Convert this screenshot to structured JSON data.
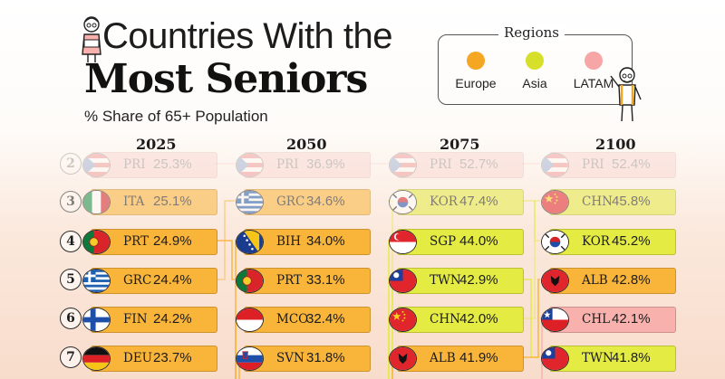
{
  "title": {
    "line1": "Countries With the",
    "line2": "Most Seniors",
    "subtitle": "% Share of 65+ Population"
  },
  "legend": {
    "title": "Regions",
    "items": [
      {
        "label": "Europe",
        "color": "#f5a623"
      },
      {
        "label": "Asia",
        "color": "#d6e02a"
      },
      {
        "label": "LATAM",
        "color": "#f7a6a6"
      }
    ]
  },
  "colors": {
    "Europe": "#f9b43a",
    "Asia": "#e4eb43",
    "LATAM": "#f8b1ad"
  },
  "ranks": [
    "2",
    "3",
    "4",
    "5",
    "6",
    "7"
  ],
  "chart_data": {
    "type": "table",
    "title": "Countries With the Most Seniors",
    "subtitle": "% Share of 65+ Population",
    "unit": "%",
    "columns": [
      {
        "year": "2025",
        "rows": [
          {
            "rank": 2,
            "code": "PRI",
            "value": 25.3,
            "label": "25.3%",
            "region": "LATAM"
          },
          {
            "rank": 3,
            "code": "ITA",
            "value": 25.1,
            "label": "25.1%",
            "region": "Europe"
          },
          {
            "rank": 4,
            "code": "PRT",
            "value": 24.9,
            "label": "24.9%",
            "region": "Europe"
          },
          {
            "rank": 5,
            "code": "GRC",
            "value": 24.4,
            "label": "24.4%",
            "region": "Europe"
          },
          {
            "rank": 6,
            "code": "FIN",
            "value": 24.2,
            "label": "24.2%",
            "region": "Europe"
          },
          {
            "rank": 7,
            "code": "DEU",
            "value": 23.7,
            "label": "23.7%",
            "region": "Europe"
          }
        ]
      },
      {
        "year": "2050",
        "rows": [
          {
            "rank": 2,
            "code": "PRI",
            "value": 36.9,
            "label": "36.9%",
            "region": "LATAM"
          },
          {
            "rank": 3,
            "code": "GRC",
            "value": 34.6,
            "label": "34.6%",
            "region": "Europe"
          },
          {
            "rank": 4,
            "code": "BIH",
            "value": 34.0,
            "label": "34.0%",
            "region": "Europe"
          },
          {
            "rank": 5,
            "code": "PRT",
            "value": 33.1,
            "label": "33.1%",
            "region": "Europe"
          },
          {
            "rank": 6,
            "code": "MCO",
            "value": 32.4,
            "label": "32.4%",
            "region": "Europe"
          },
          {
            "rank": 7,
            "code": "SVN",
            "value": 31.8,
            "label": "31.8%",
            "region": "Europe"
          }
        ]
      },
      {
        "year": "2075",
        "rows": [
          {
            "rank": 2,
            "code": "PRI",
            "value": 52.7,
            "label": "52.7%",
            "region": "LATAM"
          },
          {
            "rank": 3,
            "code": "KOR",
            "value": 47.4,
            "label": "47.4%",
            "region": "Asia"
          },
          {
            "rank": 4,
            "code": "SGP",
            "value": 44.0,
            "label": "44.0%",
            "region": "Asia"
          },
          {
            "rank": 5,
            "code": "TWN",
            "value": 42.9,
            "label": "42.9%",
            "region": "Asia"
          },
          {
            "rank": 6,
            "code": "CHN",
            "value": 42.0,
            "label": "42.0%",
            "region": "Asia"
          },
          {
            "rank": 7,
            "code": "ALB",
            "value": 41.9,
            "label": "41.9%",
            "region": "Europe"
          }
        ]
      },
      {
        "year": "2100",
        "rows": [
          {
            "rank": 2,
            "code": "PRI",
            "value": 52.4,
            "label": "52.4%",
            "region": "LATAM"
          },
          {
            "rank": 3,
            "code": "CHN",
            "value": 45.8,
            "label": "45.8%",
            "region": "Asia"
          },
          {
            "rank": 4,
            "code": "KOR",
            "value": 45.2,
            "label": "45.2%",
            "region": "Asia"
          },
          {
            "rank": 5,
            "code": "ALB",
            "value": 42.8,
            "label": "42.8%",
            "region": "Europe"
          },
          {
            "rank": 6,
            "code": "CHL",
            "value": 42.1,
            "label": "42.1%",
            "region": "LATAM"
          },
          {
            "rank": 7,
            "code": "TWN",
            "value": 41.8,
            "label": "41.8%",
            "region": "Asia"
          }
        ]
      }
    ]
  }
}
